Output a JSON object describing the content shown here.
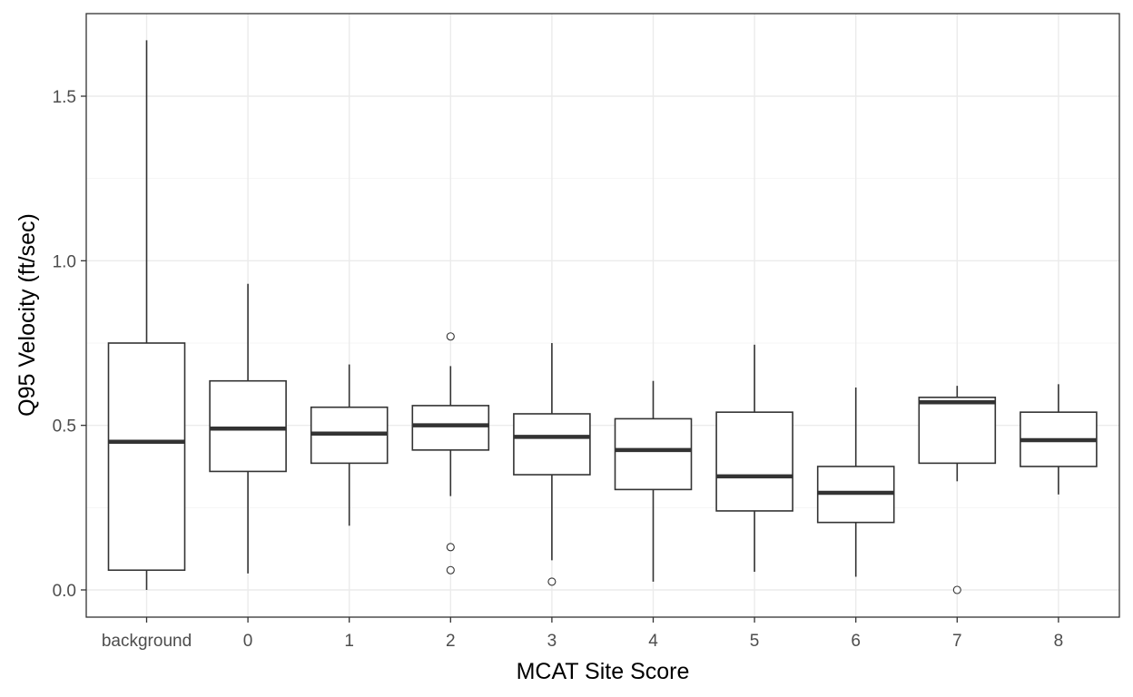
{
  "chart_data": {
    "type": "boxplot",
    "xlabel": "MCAT Site Score",
    "ylabel": "Q95 Velocity (ft/sec)",
    "ylim": [
      -0.08,
      1.74
    ],
    "yticks": [
      0.0,
      0.5,
      1.0,
      1.5
    ],
    "ytick_labels": [
      "0.0",
      "0.5",
      "1.0",
      "1.5"
    ],
    "grid": true,
    "categories": [
      "background",
      "0",
      "1",
      "2",
      "3",
      "4",
      "5",
      "6",
      "7",
      "8"
    ],
    "boxes": [
      {
        "category": "background",
        "whisker_low": 0.0,
        "q1": 0.06,
        "median": 0.45,
        "q3": 0.75,
        "whisker_high": 1.67,
        "outliers": []
      },
      {
        "category": "0",
        "whisker_low": 0.05,
        "q1": 0.36,
        "median": 0.49,
        "q3": 0.635,
        "whisker_high": 0.93,
        "outliers": []
      },
      {
        "category": "1",
        "whisker_low": 0.195,
        "q1": 0.385,
        "median": 0.475,
        "q3": 0.555,
        "whisker_high": 0.685,
        "outliers": []
      },
      {
        "category": "2",
        "whisker_low": 0.285,
        "q1": 0.425,
        "median": 0.5,
        "q3": 0.56,
        "whisker_high": 0.68,
        "outliers": [
          0.77,
          0.13,
          0.06
        ]
      },
      {
        "category": "3",
        "whisker_low": 0.09,
        "q1": 0.35,
        "median": 0.465,
        "q3": 0.535,
        "whisker_high": 0.75,
        "outliers": [
          0.025
        ]
      },
      {
        "category": "4",
        "whisker_low": 0.025,
        "q1": 0.305,
        "median": 0.425,
        "q3": 0.52,
        "whisker_high": 0.635,
        "outliers": []
      },
      {
        "category": "5",
        "whisker_low": 0.055,
        "q1": 0.24,
        "median": 0.345,
        "q3": 0.54,
        "whisker_high": 0.745,
        "outliers": []
      },
      {
        "category": "6",
        "whisker_low": 0.04,
        "q1": 0.205,
        "median": 0.295,
        "q3": 0.375,
        "whisker_high": 0.615,
        "outliers": []
      },
      {
        "category": "7",
        "whisker_low": 0.33,
        "q1": 0.385,
        "median": 0.57,
        "q3": 0.585,
        "whisker_high": 0.62,
        "outliers": [
          0.0
        ]
      },
      {
        "category": "8",
        "whisker_low": 0.29,
        "q1": 0.375,
        "median": 0.455,
        "q3": 0.54,
        "whisker_high": 0.625,
        "outliers": []
      }
    ],
    "colors": {
      "box_stroke": "#333333",
      "median": "#333333",
      "grid_major": "#ebebeb",
      "grid_minor": "#f5f5f5",
      "panel_border": "#333333",
      "tick_text": "#4d4d4d"
    }
  }
}
